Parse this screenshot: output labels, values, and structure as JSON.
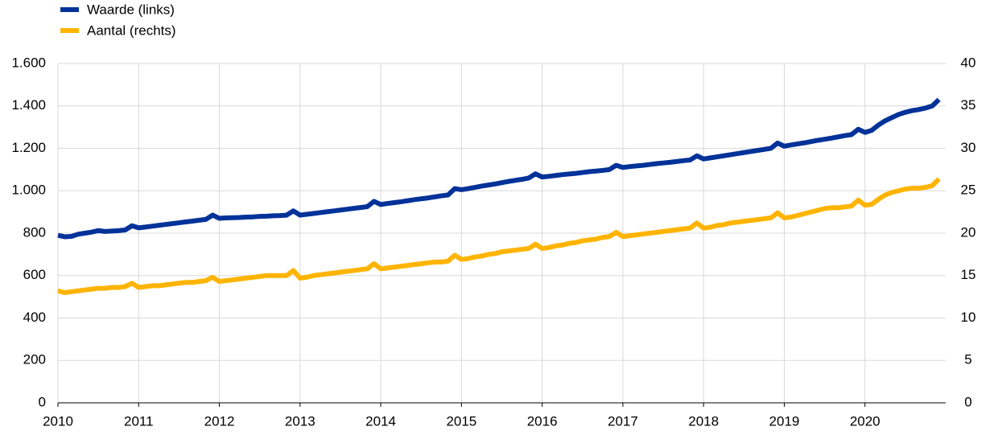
{
  "chart_data": {
    "type": "line",
    "x": [
      2010,
      2010.083,
      2010.167,
      2010.25,
      2010.333,
      2010.417,
      2010.5,
      2010.583,
      2010.667,
      2010.75,
      2010.833,
      2010.917,
      2011,
      2011.083,
      2011.167,
      2011.25,
      2011.333,
      2011.417,
      2011.5,
      2011.583,
      2011.667,
      2011.75,
      2011.833,
      2011.917,
      2012,
      2012.083,
      2012.167,
      2012.25,
      2012.333,
      2012.417,
      2012.5,
      2012.583,
      2012.667,
      2012.75,
      2012.833,
      2012.917,
      2013,
      2013.083,
      2013.167,
      2013.25,
      2013.333,
      2013.417,
      2013.5,
      2013.583,
      2013.667,
      2013.75,
      2013.833,
      2013.917,
      2014,
      2014.083,
      2014.167,
      2014.25,
      2014.333,
      2014.417,
      2014.5,
      2014.583,
      2014.667,
      2014.75,
      2014.833,
      2014.917,
      2015,
      2015.083,
      2015.167,
      2015.25,
      2015.333,
      2015.417,
      2015.5,
      2015.583,
      2015.667,
      2015.75,
      2015.833,
      2015.917,
      2016,
      2016.083,
      2016.167,
      2016.25,
      2016.333,
      2016.417,
      2016.5,
      2016.583,
      2016.667,
      2016.75,
      2016.833,
      2016.917,
      2017,
      2017.083,
      2017.167,
      2017.25,
      2017.333,
      2017.417,
      2017.5,
      2017.583,
      2017.667,
      2017.75,
      2017.833,
      2017.917,
      2018,
      2018.083,
      2018.167,
      2018.25,
      2018.333,
      2018.417,
      2018.5,
      2018.583,
      2018.667,
      2018.75,
      2018.833,
      2018.917,
      2019,
      2019.083,
      2019.167,
      2019.25,
      2019.333,
      2019.417,
      2019.5,
      2019.583,
      2019.667,
      2019.75,
      2019.833,
      2019.917,
      2020,
      2020.083,
      2020.167,
      2020.25,
      2020.333,
      2020.417,
      2020.5,
      2020.583,
      2020.667,
      2020.75,
      2020.833,
      2020.917
    ],
    "series": [
      {
        "name": "Waarde (links)",
        "color": "#003299",
        "values": [
          790,
          783,
          785,
          795,
          800,
          805,
          812,
          808,
          810,
          812,
          815,
          835,
          825,
          829,
          833,
          837,
          841,
          845,
          849,
          853,
          857,
          861,
          865,
          885,
          870,
          872,
          873,
          874,
          876,
          877,
          879,
          880,
          882,
          883,
          885,
          905,
          885,
          889,
          893,
          897,
          901,
          905,
          909,
          913,
          917,
          921,
          925,
          950,
          935,
          940,
          944,
          948,
          953,
          958,
          962,
          966,
          971,
          976,
          980,
          1010,
          1005,
          1010,
          1016,
          1022,
          1027,
          1032,
          1038,
          1044,
          1049,
          1054,
          1060,
          1080,
          1065,
          1068,
          1072,
          1076,
          1079,
          1082,
          1086,
          1090,
          1093,
          1096,
          1100,
          1120,
          1110,
          1114,
          1117,
          1120,
          1124,
          1128,
          1131,
          1134,
          1138,
          1142,
          1145,
          1165,
          1150,
          1155,
          1160,
          1165,
          1170,
          1175,
          1180,
          1185,
          1190,
          1195,
          1200,
          1225,
          1210,
          1216,
          1221,
          1226,
          1232,
          1238,
          1243,
          1248,
          1254,
          1260,
          1265,
          1290,
          1275,
          1285,
          1310,
          1330,
          1345,
          1360,
          1370,
          1378,
          1383,
          1390,
          1400,
          1430
        ]
      },
      {
        "name": "Aantal (rechts)",
        "color": "#ffb400",
        "axis": "y2",
        "values": [
          13.2,
          13.0,
          13.1,
          13.2,
          13.3,
          13.4,
          13.5,
          13.5,
          13.6,
          13.6,
          13.7,
          14.1,
          13.6,
          13.7,
          13.8,
          13.8,
          13.9,
          14.0,
          14.1,
          14.2,
          14.2,
          14.3,
          14.4,
          14.8,
          14.3,
          14.4,
          14.5,
          14.6,
          14.7,
          14.8,
          14.9,
          15.0,
          15.0,
          15.0,
          15.0,
          15.6,
          14.7,
          14.8,
          15.0,
          15.1,
          15.2,
          15.3,
          15.4,
          15.5,
          15.6,
          15.7,
          15.8,
          16.4,
          15.8,
          15.9,
          16.0,
          16.1,
          16.2,
          16.3,
          16.4,
          16.5,
          16.6,
          16.6,
          16.7,
          17.4,
          16.9,
          17.0,
          17.2,
          17.3,
          17.5,
          17.6,
          17.8,
          17.9,
          18.0,
          18.1,
          18.2,
          18.7,
          18.2,
          18.3,
          18.5,
          18.6,
          18.8,
          18.9,
          19.1,
          19.2,
          19.3,
          19.5,
          19.6,
          20.1,
          19.6,
          19.7,
          19.8,
          19.9,
          20.0,
          20.1,
          20.2,
          20.3,
          20.4,
          20.5,
          20.6,
          21.2,
          20.6,
          20.7,
          20.9,
          21.0,
          21.2,
          21.3,
          21.4,
          21.5,
          21.6,
          21.7,
          21.8,
          22.4,
          21.8,
          21.9,
          22.1,
          22.3,
          22.5,
          22.7,
          22.9,
          23.0,
          23.0,
          23.1,
          23.2,
          23.9,
          23.3,
          23.4,
          24.0,
          24.5,
          24.8,
          25.0,
          25.2,
          25.3,
          25.3,
          25.4,
          25.6,
          26.4
        ]
      }
    ],
    "xlim": [
      2010,
      2021
    ],
    "xticks": [
      2010,
      2011,
      2012,
      2013,
      2014,
      2015,
      2016,
      2017,
      2018,
      2019,
      2020
    ],
    "ylim": [
      0,
      1600
    ],
    "yticks": [
      0,
      200,
      400,
      600,
      800,
      {
        "value": 1000,
        "label": "1.000"
      },
      {
        "value": 1200,
        "label": "1.200"
      },
      {
        "value": 1400,
        "label": "1.400"
      },
      {
        "value": 1600,
        "label": "1.600"
      }
    ],
    "y2lim": [
      0,
      40
    ],
    "y2ticks": [
      0,
      5,
      10,
      15,
      20,
      25,
      30,
      35,
      40
    ],
    "grid": true,
    "legend": "top-left"
  }
}
